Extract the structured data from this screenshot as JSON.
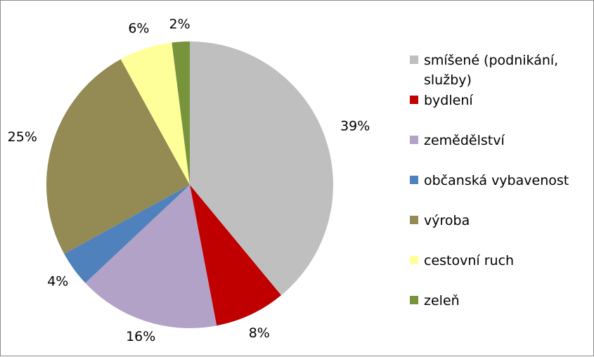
{
  "chart_data": {
    "type": "pie",
    "title": "",
    "categories": [
      "smíšené (podnikání, služby)",
      "bydlení",
      "zemědělství",
      "občanská vybavenost",
      "výroba",
      "cestovní ruch",
      "zeleň"
    ],
    "values": [
      39,
      8,
      16,
      4,
      25,
      6,
      2
    ],
    "value_labels": [
      "39%",
      "8%",
      "16%",
      "4%",
      "25%",
      "6%",
      "2%"
    ],
    "colors": [
      "#BFBFBF",
      "#C00000",
      "#B3A2C7",
      "#4F81BD",
      "#948A54",
      "#FFFF99",
      "#77933C"
    ],
    "start_angle_deg": 0,
    "direction": "clockwise",
    "legend_position": "right"
  }
}
